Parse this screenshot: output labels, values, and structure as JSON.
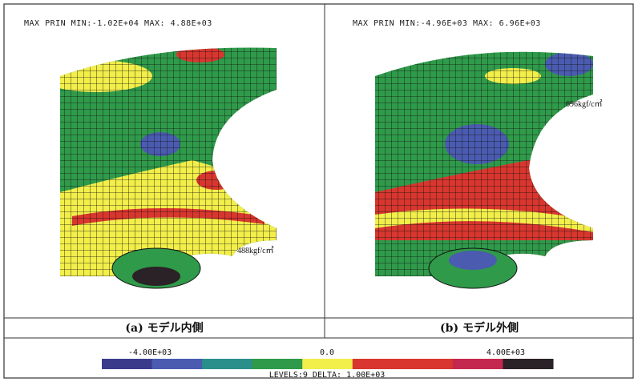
{
  "panels": [
    {
      "header": "MAX PRIN MIN:-1.02E+04 MAX: 4.88E+03",
      "annotation": "488kgf/c㎡",
      "caption": "(a) モデル内側"
    },
    {
      "header": "MAX PRIN MIN:-4.96E+03 MAX: 6.96E+03",
      "annotation": "696kgf/c㎡",
      "caption": "(b) モデル外側"
    }
  ],
  "legend": {
    "min_label": "-4.00E+03",
    "mid_label": "0.0",
    "max_label": "4.00E+03",
    "footer": "LEVELS:9 DELTA: 1.00E+03",
    "colors": [
      "#3b3b8c",
      "#4a5bb0",
      "#2a8f8a",
      "#2f9a4a",
      "#f2ee4a",
      "#d8362e",
      "#d8362e",
      "#c4284e",
      "#2a2226"
    ]
  }
}
